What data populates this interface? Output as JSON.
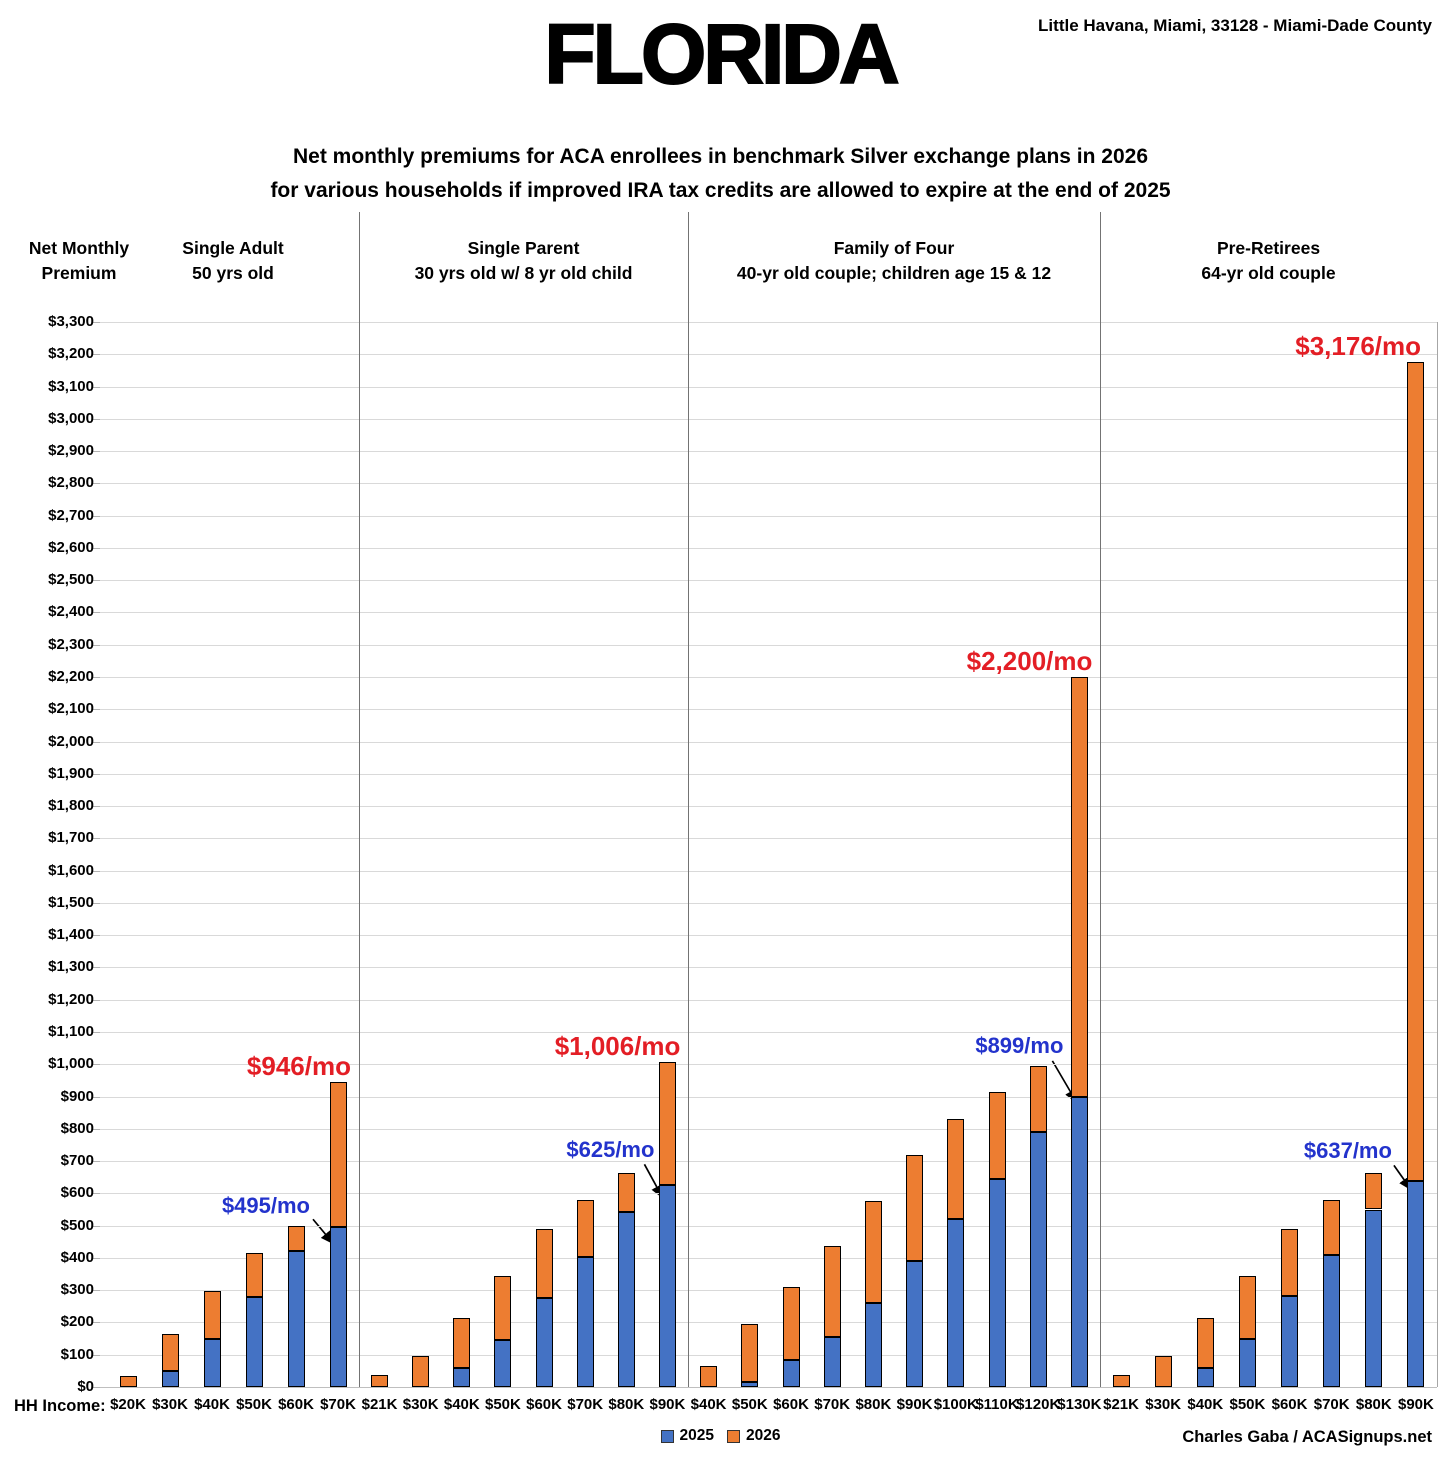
{
  "header": {
    "title": "FLORIDA",
    "location": "Little Havana, Miami, 33128 - Miami-Dade County",
    "subtitle_line1": "Net monthly premiums for ACA enrollees in benchmark Silver exchange plans in 2026",
    "subtitle_line2": "for various households if improved IRA tax credits are allowed to expire at the end of 2025"
  },
  "y_axis_title": {
    "line1": "Net Monthly",
    "line2": "Premium"
  },
  "x_axis_label": "HH Income:",
  "legend": [
    {
      "label": "2025",
      "color": "#4472C4"
    },
    {
      "label": "2026",
      "color": "#ED7D31"
    }
  ],
  "credit": "Charles Gaba / ACASignups.net",
  "colors": {
    "bar_2025": "#4472C4",
    "bar_2026": "#ED7D31",
    "bar_border": "#000000",
    "gridline": "#D9D9D9",
    "separator": "#737373",
    "annotation_red": "#E31E25",
    "annotation_blue": "#2333CC",
    "text": "#000000"
  },
  "chart_data": {
    "type": "bar",
    "title": "Net monthly premiums for ACA enrollees in benchmark Silver exchange plans in 2026 for various households if improved IRA tax credits are allowed to expire at the end of 2025",
    "ylabel": "Net Monthly Premium",
    "xlabel": "HH Income:",
    "ylim": [
      0,
      3300
    ],
    "ytick_step": 100,
    "grid": true,
    "legend_position": "bottom-center",
    "stacking": "2025 value drawn in blue from $0; orange segment spans from the 2025 value up to the 2026 total",
    "groups": [
      {
        "title": "Single Adult",
        "subtitle": "50 yrs old",
        "categories": [
          "$20K",
          "$30K",
          "$40K",
          "$50K",
          "$60K",
          "$70K"
        ],
        "series": [
          {
            "name": "2025",
            "values": [
              0,
              50,
              150,
              280,
              420,
              495
            ]
          },
          {
            "name": "2026",
            "values": [
              35,
              165,
              297,
              415,
              500,
              946
            ]
          }
        ]
      },
      {
        "title": "Single Parent",
        "subtitle": "30 yrs old w/ 8 yr old child",
        "categories": [
          "$21K",
          "$30K",
          "$40K",
          "$50K",
          "$60K",
          "$70K",
          "$80K",
          "$90K"
        ],
        "series": [
          {
            "name": "2025",
            "values": [
              0,
              0,
              58,
              147,
              275,
              403,
              542,
              625
            ]
          },
          {
            "name": "2026",
            "values": [
              38,
              97,
              215,
              345,
              490,
              578,
              662,
              1006
            ]
          }
        ]
      },
      {
        "title": "Family of Four",
        "subtitle": "40-yr old couple; children age 15 & 12",
        "categories": [
          "$40K",
          "$50K",
          "$60K",
          "$70K",
          "$80K",
          "$90K",
          "$100K",
          "$110K",
          "$120K",
          "$130K"
        ],
        "series": [
          {
            "name": "2025",
            "values": [
              0,
              15,
              85,
              155,
              260,
              390,
              520,
              645,
              790,
              899
            ]
          },
          {
            "name": "2026",
            "values": [
              65,
              195,
              310,
              437,
              575,
              720,
              830,
              915,
              995,
              2200
            ]
          }
        ]
      },
      {
        "title": "Pre-Retirees",
        "subtitle": "64-yr old couple",
        "categories": [
          "$21K",
          "$30K",
          "$40K",
          "$50K",
          "$60K",
          "$70K",
          "$80K",
          "$90K"
        ],
        "series": [
          {
            "name": "2025",
            "values": [
              0,
              0,
              58,
              150,
              281,
              410,
              550,
              637
            ]
          },
          {
            "name": "2026",
            "values": [
              38,
              97,
              215,
              345,
              490,
              578,
              662,
              3176
            ]
          }
        ]
      }
    ],
    "annotations": [
      {
        "group": 0,
        "category_index": 5,
        "text": "$946/mo",
        "color": "red",
        "points_to": "2026-total"
      },
      {
        "group": 0,
        "category_index": 5,
        "text": "$495/mo",
        "color": "blue",
        "points_to": "2025-top"
      },
      {
        "group": 1,
        "category_index": 7,
        "text": "$1,006/mo",
        "color": "red",
        "points_to": "2026-total"
      },
      {
        "group": 1,
        "category_index": 7,
        "text": "$625/mo",
        "color": "blue",
        "points_to": "2025-top"
      },
      {
        "group": 2,
        "category_index": 9,
        "text": "$2,200/mo",
        "color": "red",
        "points_to": "2026-total"
      },
      {
        "group": 2,
        "category_index": 9,
        "text": "$899/mo",
        "color": "blue",
        "points_to": "2025-top"
      },
      {
        "group": 3,
        "category_index": 7,
        "text": "$3,176/mo",
        "color": "red",
        "points_to": "2026-total"
      },
      {
        "group": 3,
        "category_index": 7,
        "text": "$637/mo",
        "color": "blue",
        "points_to": "2025-top"
      }
    ]
  }
}
